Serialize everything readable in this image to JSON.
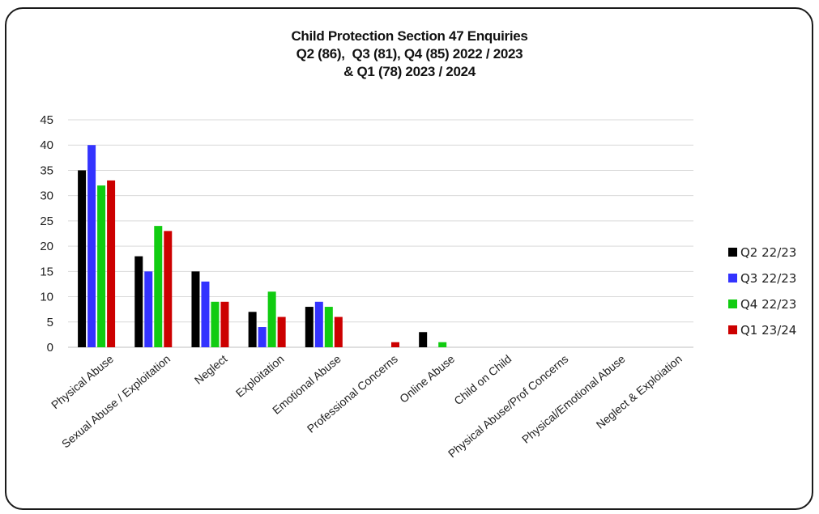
{
  "chart_data": {
    "type": "bar",
    "title_lines": [
      "Child Protection Section 47 Enquiries",
      "Q2 (86),  Q3 (81), Q4 (85) 2022 / 2023",
      "& Q1 (78) 2023 / 2024"
    ],
    "xlabel": "",
    "ylabel": "",
    "ylim": [
      0,
      45
    ],
    "yticks": [
      0,
      5,
      10,
      15,
      20,
      25,
      30,
      35,
      40,
      45
    ],
    "grid": true,
    "legend_position": "right",
    "categories": [
      "Physical Abuse",
      "Sexual Abuse / Exploitation",
      "Neglect",
      "Exploitation",
      "Emotional Abuse",
      "Professional Concerns",
      "Online Abuse",
      "Child on Child",
      "Physical Abuse/Prof Concerns",
      "Physical/Emotional Abuse",
      "Neglect & Exploiation"
    ],
    "series": [
      {
        "name": "Q2 22/23",
        "color": "#000000",
        "values": [
          35,
          18,
          15,
          7,
          8,
          0,
          3,
          0,
          0,
          0,
          0
        ]
      },
      {
        "name": "Q3 22/23",
        "color": "#3333ff",
        "values": [
          40,
          15,
          13,
          4,
          9,
          0,
          0,
          0,
          0,
          0,
          0
        ]
      },
      {
        "name": "Q4 22/23",
        "color": "#11cc11",
        "values": [
          32,
          24,
          9,
          11,
          8,
          0,
          1,
          0,
          0,
          0,
          0
        ]
      },
      {
        "name": "Q1 23/24",
        "color": "#cc0000",
        "values": [
          33,
          23,
          9,
          6,
          6,
          1,
          0,
          0,
          0,
          0,
          0
        ]
      }
    ]
  }
}
